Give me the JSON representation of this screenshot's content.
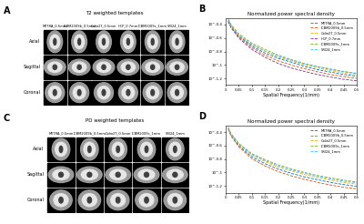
{
  "panels": [
    {
      "panel": "A",
      "type": "image_grid",
      "title": "T2 weighted templates",
      "rows": [
        "Axial",
        "Sagittal",
        "Coronal"
      ],
      "columns": [
        "MIITRA_0.5mm",
        "ICBM2009b_0.5mm",
        "Colin27_0.5mm",
        "HCP_0.7mm",
        "ICBM2009c_1mm",
        "SRI24_1mm"
      ]
    },
    {
      "panel": "C",
      "type": "image_grid",
      "title": "PD weighted templates",
      "rows": [
        "Axial",
        "Sagittal",
        "Coronal"
      ],
      "columns": [
        "MIITRA_0.5mm",
        "ICBM2009b_0.5mm",
        "Colin27_0.5mm",
        "ICBM2009c_1mm",
        "SRI24_1mm"
      ]
    }
  ],
  "chart_data": [
    {
      "panel": "B",
      "type": "line",
      "title": "Normalized power spectral density",
      "x_label": "Spatial Frequency(1/mm)",
      "log": "y",
      "legend": "upper right",
      "line_style": "dashed",
      "x": [
        0.01,
        0.02,
        0.05,
        0.1,
        0.15,
        0.2,
        0.25,
        0.3,
        0.35,
        0.4,
        0.45,
        0.5
      ],
      "xlim": [
        0,
        0.5
      ],
      "xticks": [
        0,
        0.05,
        0.1,
        0.15,
        0.2,
        0.25,
        0.3,
        0.35,
        0.4,
        0.45,
        0.5
      ],
      "ylim": [
        0.05,
        0.5
      ],
      "yticks": [
        {
          "value": 0.0631,
          "label": "10^-1.2"
        },
        {
          "value": 0.1,
          "label": "10^-1"
        },
        {
          "value": 0.1585,
          "label": "10^-0.8"
        },
        {
          "value": 0.2512,
          "label": "10^-0.6"
        },
        {
          "value": 0.3981,
          "label": "10^-0.4"
        }
      ],
      "series": [
        {
          "name": "MIITRA_0.5mm",
          "color": "#0072bd",
          "values": [
            0.46,
            0.38,
            0.27,
            0.19,
            0.15,
            0.125,
            0.11,
            0.095,
            0.085,
            0.078,
            0.072,
            0.068
          ]
        },
        {
          "name": "ICBM2009b_0.5mm",
          "color": "#d95319",
          "values": [
            0.45,
            0.37,
            0.26,
            0.18,
            0.14,
            0.115,
            0.1,
            0.088,
            0.079,
            0.072,
            0.067,
            0.063
          ]
        },
        {
          "name": "Colin27_0.5mm",
          "color": "#edb120",
          "values": [
            0.47,
            0.39,
            0.28,
            0.2,
            0.16,
            0.13,
            0.115,
            0.1,
            0.09,
            0.082,
            0.076,
            0.071
          ]
        },
        {
          "name": "HCP_0.7mm",
          "color": "#7e2f8e",
          "values": [
            0.44,
            0.36,
            0.25,
            0.17,
            0.13,
            0.105,
            0.09,
            0.08,
            0.072,
            0.066,
            0.061,
            0.058
          ]
        },
        {
          "name": "ICBM2009c_1mm",
          "color": "#77ac30",
          "values": [
            0.48,
            0.4,
            0.29,
            0.21,
            0.17,
            0.14,
            0.12,
            0.105,
            0.095,
            0.087,
            0.08,
            0.075
          ]
        },
        {
          "name": "SRI24_1mm",
          "color": "#4dbeee",
          "values": [
            0.47,
            0.38,
            0.27,
            0.2,
            0.16,
            0.135,
            0.118,
            0.103,
            0.093,
            0.085,
            0.079,
            0.074
          ]
        }
      ]
    },
    {
      "panel": "D",
      "type": "line",
      "title": "Normalized power spectral density",
      "x_label": "Spatial Frequency(1/mm)",
      "log": "y",
      "legend": "upper right",
      "line_style": "dashed",
      "x": [
        0.01,
        0.02,
        0.05,
        0.1,
        0.15,
        0.2,
        0.25,
        0.3,
        0.35,
        0.4,
        0.45,
        0.5
      ],
      "xlim": [
        0,
        0.5
      ],
      "xticks": [
        0,
        0.05,
        0.1,
        0.15,
        0.2,
        0.25,
        0.3,
        0.35,
        0.4,
        0.45,
        0.5
      ],
      "ylim": [
        0.05,
        0.5
      ],
      "yticks": [
        {
          "value": 0.0631,
          "label": "10^-1.2"
        },
        {
          "value": 0.1,
          "label": "10^-1"
        },
        {
          "value": 0.1585,
          "label": "10^-0.8"
        },
        {
          "value": 0.2512,
          "label": "10^-0.6"
        },
        {
          "value": 0.3981,
          "label": "10^-0.4"
        }
      ],
      "series": [
        {
          "name": "MIITRA_0.5mm",
          "color": "#0072bd",
          "values": [
            0.45,
            0.36,
            0.25,
            0.17,
            0.135,
            0.112,
            0.097,
            0.086,
            0.078,
            0.071,
            0.066,
            0.062
          ]
        },
        {
          "name": "ICBM2009b_0.5mm",
          "color": "#d95319",
          "values": [
            0.44,
            0.35,
            0.24,
            0.16,
            0.125,
            0.103,
            0.089,
            0.079,
            0.071,
            0.065,
            0.06,
            0.057
          ]
        },
        {
          "name": "Colin27_0.5mm",
          "color": "#edb120",
          "values": [
            0.46,
            0.37,
            0.26,
            0.18,
            0.145,
            0.12,
            0.105,
            0.093,
            0.084,
            0.077,
            0.071,
            0.067
          ]
        },
        {
          "name": "ICBM2009c_1mm",
          "color": "#77ac30",
          "values": [
            0.47,
            0.38,
            0.27,
            0.19,
            0.155,
            0.13,
            0.113,
            0.1,
            0.09,
            0.083,
            0.077,
            0.072
          ]
        },
        {
          "name": "SRI24_1mm",
          "color": "#4dbeee",
          "values": [
            0.46,
            0.37,
            0.265,
            0.185,
            0.15,
            0.125,
            0.109,
            0.097,
            0.087,
            0.08,
            0.074,
            0.07
          ]
        }
      ]
    }
  ]
}
